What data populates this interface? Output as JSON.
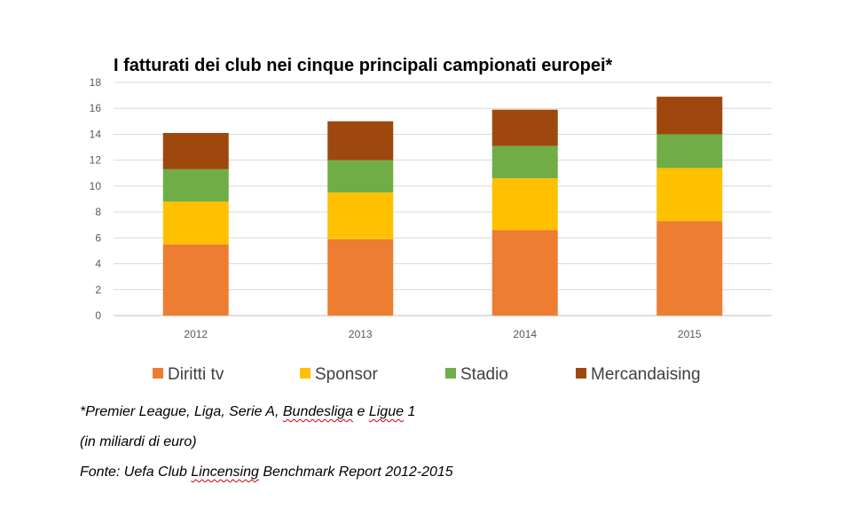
{
  "chart_data": {
    "type": "bar",
    "stacked": true,
    "title": "I fatturati dei club nei cinque principali campionati europei*",
    "categories": [
      "2012",
      "2013",
      "2014",
      "2015"
    ],
    "series": [
      {
        "name": "Diritti tv",
        "color": "#ED7D31",
        "values": [
          5.5,
          5.9,
          6.6,
          7.3
        ]
      },
      {
        "name": "Sponsor",
        "color": "#FFC000",
        "values": [
          3.3,
          3.6,
          4.0,
          4.1
        ]
      },
      {
        "name": "Stadio",
        "color": "#70AD47",
        "values": [
          2.5,
          2.5,
          2.5,
          2.6
        ]
      },
      {
        "name": "Mercandaising",
        "color": "#9E480E",
        "values": [
          2.8,
          3.0,
          2.8,
          2.9
        ]
      }
    ],
    "yticks": [
      "0",
      "2",
      "4",
      "6",
      "8",
      "10",
      "12",
      "14",
      "16",
      "18"
    ],
    "ylim": [
      0,
      18
    ],
    "grid": true,
    "legend_position": "bottom"
  },
  "notes": {
    "line1_prefix": "*Premier League, Liga, Serie A, ",
    "line1_bundesliga": "Bundesliga",
    "line1_and": " e ",
    "line1_ligue": "Ligue",
    "line1_suffix": " 1",
    "line2": "(in miliardi di euro)",
    "line3_prefix": "Fonte: Uefa Club ",
    "line3_lincensing": "Lincensing",
    "line3_suffix": " Benchmark Report 2012-2015"
  }
}
